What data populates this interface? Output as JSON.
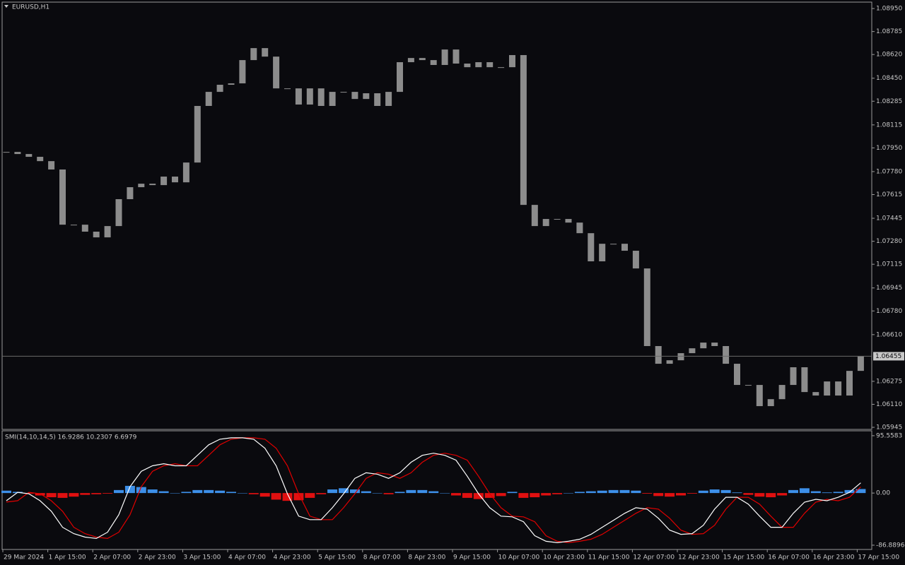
{
  "chart_data": [
    {
      "type": "candlestick",
      "title": "EURUSD,H1",
      "color": "#8c8c8c",
      "values": [
        1.07921,
        1.07906,
        1.07886,
        1.07855,
        1.07795,
        1.07399,
        1.07399,
        1.07349,
        1.07308,
        1.07389,
        1.07582,
        1.07668,
        1.07693,
        1.07683,
        1.07744,
        1.07703,
        1.07845,
        1.08251,
        1.08352,
        1.08403,
        1.08413,
        1.0858,
        1.08666,
        1.08605,
        1.08377,
        1.08377,
        1.08261,
        1.08377,
        1.08251,
        1.08352,
        1.08352,
        1.08301,
        1.08342,
        1.08251,
        1.08352,
        1.08565,
        1.08595,
        1.0858,
        1.08545,
        1.08656,
        1.08555,
        1.08529,
        1.08565,
        1.08529,
        1.08529,
        1.08616,
        1.07541,
        1.07389,
        1.0744,
        1.0744,
        1.07414,
        1.07338,
        1.07136,
        1.07262,
        1.07262,
        1.07212,
        1.07085,
        1.06528,
        1.06401,
        1.06426,
        1.06477,
        1.06512,
        1.06553,
        1.06528,
        1.06401,
        1.06249,
        1.06249,
        1.06097,
        1.06147,
        1.06249,
        1.06376,
        1.06198,
        1.06173,
        1.06274,
        1.06173,
        1.0635,
        1.06455
      ],
      "current_price": 1.06455,
      "ylim": [
        1.0593,
        1.08996
      ],
      "yticks": [
        {
          "value": 1.0895,
          "label": "1.08950"
        },
        {
          "value": 1.08785,
          "label": "1.08785"
        },
        {
          "value": 1.0862,
          "label": "1.08620"
        },
        {
          "value": 1.0845,
          "label": "1.08450"
        },
        {
          "value": 1.08285,
          "label": "1.08285"
        },
        {
          "value": 1.08115,
          "label": "1.08115"
        },
        {
          "value": 1.0795,
          "label": "1.07950"
        },
        {
          "value": 1.0778,
          "label": "1.07780"
        },
        {
          "value": 1.07615,
          "label": "1.07615"
        },
        {
          "value": 1.07445,
          "label": "1.07445"
        },
        {
          "value": 1.0728,
          "label": "1.07280"
        },
        {
          "value": 1.07115,
          "label": "1.07115"
        },
        {
          "value": 1.06945,
          "label": "1.06945"
        },
        {
          "value": 1.0678,
          "label": "1.06780"
        },
        {
          "value": 1.0661,
          "label": "1.06610"
        },
        {
          "value": 1.06275,
          "label": "1.06275"
        },
        {
          "value": 1.0611,
          "label": "1.06110"
        },
        {
          "value": 1.05945,
          "label": "1.05945"
        }
      ]
    },
    {
      "type": "smi",
      "title": "SMI(14,10,14,5) 16.9286 10.2307 6.6979",
      "categories": [
        "29 Mar 2024",
        null,
        null,
        null,
        "1 Apr 15:00",
        null,
        null,
        null,
        "2 Apr 07:00",
        null,
        null,
        null,
        "2 Apr 23:00",
        null,
        null,
        null,
        "3 Apr 15:00",
        null,
        null,
        null,
        "4 Apr 07:00",
        null,
        null,
        null,
        "4 Apr 23:00",
        null,
        null,
        null,
        "5 Apr 15:00",
        null,
        null,
        null,
        "8 Apr 07:00",
        null,
        null,
        null,
        "8 Apr 23:00",
        null,
        null,
        null,
        "9 Apr 15:00",
        null,
        null,
        null,
        "10 Apr 07:00",
        null,
        null,
        null,
        "10 Apr 23:00",
        null,
        null,
        null,
        "11 Apr 15:00",
        null,
        null,
        null,
        "12 Apr 07:00",
        null,
        null,
        null,
        "12 Apr 23:00",
        null,
        null,
        null,
        "15 Apr 15:00",
        null,
        null,
        null,
        "16 Apr 07:00",
        null,
        null,
        null,
        "16 Apr 23:00",
        null,
        null,
        null,
        "17 Apr 15:00"
      ],
      "histogram": {
        "positive_color": "#3d8fe8",
        "negative_color": "#e01010",
        "values": [
          4,
          2,
          -1,
          -4,
          -7,
          -8,
          -6,
          -3,
          -2,
          -1,
          5,
          12,
          10,
          6,
          3,
          0,
          2,
          5,
          5,
          4,
          2,
          0,
          -2,
          -6,
          -11,
          -13,
          -12,
          -8,
          -2,
          6,
          8,
          6,
          3,
          0,
          -2,
          2,
          5,
          5,
          3,
          0,
          -4,
          -8,
          -10,
          -8,
          -5,
          2,
          -8,
          -7,
          -4,
          -2,
          0,
          2,
          3,
          4,
          5,
          5,
          4,
          -1,
          -5,
          -6,
          -4,
          -1,
          4,
          6,
          5,
          1,
          -3,
          -6,
          -7,
          -4,
          5,
          8,
          3,
          1,
          2,
          5,
          6.6979
        ]
      },
      "series": [
        {
          "color": "#ffffff",
          "values": [
            -12.8,
            1.2,
            -1.2,
            -12.8,
            -30.3,
            -57.1,
            -67.6,
            -73.4,
            -75.7,
            -65.3,
            -36.1,
            10.5,
            36.1,
            45.4,
            48.9,
            45.4,
            45.4,
            62.9,
            80.4,
            89.7,
            92.0,
            92.0,
            89.7,
            74.6,
            45.4,
            -1.2,
            -38.5,
            -44.3,
            -44.3,
            -24.5,
            -1.2,
            24.5,
            33.8,
            31.5,
            24.5,
            33.8,
            51.3,
            62.9,
            66.4,
            62.9,
            54.8,
            28.0,
            -1.2,
            -24.5,
            -38.5,
            -39.6,
            -47.8,
            -71.1,
            -80.4,
            -82.7,
            -80.4,
            -76.9,
            -68.8,
            -57.1,
            -45.4,
            -33.8,
            -24.5,
            -26.8,
            -42.0,
            -61.8,
            -68.8,
            -67.6,
            -53.6,
            -26.8,
            -7.0,
            -7.0,
            -18.6,
            -38.5,
            -57.1,
            -57.1,
            -33.8,
            -15.1,
            -10.5,
            -12.8,
            -7.0,
            1.2,
            16.9286
          ]
        },
        {
          "color": "#e00000",
          "values": [
            -15,
            -12.8,
            1.2,
            -1.2,
            -12.8,
            -30.3,
            -57.1,
            -67.6,
            -73.4,
            -75.7,
            -65.3,
            -36.1,
            10.5,
            36.1,
            45.4,
            48.9,
            45.4,
            45.4,
            62.9,
            80.4,
            89.7,
            92.0,
            92.0,
            89.7,
            74.6,
            45.4,
            -1.2,
            -38.5,
            -44.3,
            -44.3,
            -24.5,
            -1.2,
            24.5,
            33.8,
            31.5,
            24.5,
            33.8,
            51.3,
            62.9,
            66.4,
            62.9,
            54.8,
            28.0,
            -1.2,
            -24.5,
            -38.5,
            -39.6,
            -47.8,
            -71.1,
            -80.4,
            -82.7,
            -80.4,
            -76.9,
            -68.8,
            -57.1,
            -45.4,
            -33.8,
            -24.5,
            -26.8,
            -42.0,
            -61.8,
            -68.8,
            -67.6,
            -53.6,
            -26.8,
            -7.0,
            -7.0,
            -18.6,
            -38.5,
            -57.1,
            -57.1,
            -33.8,
            -15.1,
            -10.5,
            -12.8,
            -7.0,
            10.2307
          ]
        }
      ],
      "ylim": [
        -94.0,
        103.7
      ],
      "yticks": [
        95.5583,
        {
          "value": 0,
          "label": "0.00"
        },
        -86.8896
      ]
    }
  ]
}
